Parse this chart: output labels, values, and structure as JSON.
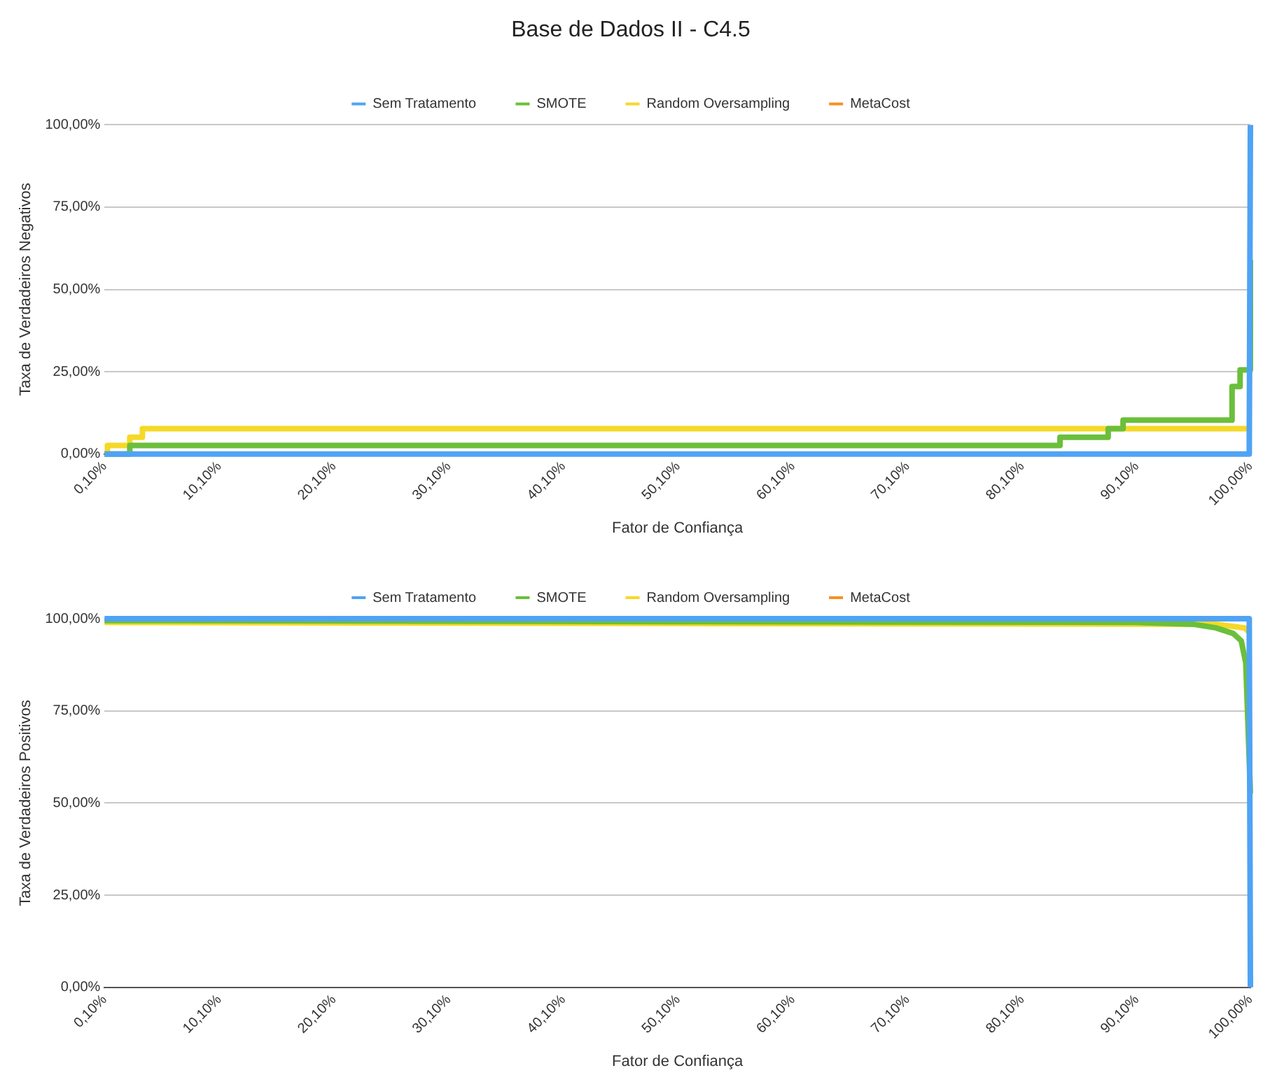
{
  "chart_data": [
    {
      "type": "step",
      "title": "Base de Dados II - C4.5",
      "xlabel": "Fator de Confiança",
      "ylabel": "Taxa de Verdadeiros Negativos",
      "legend": "top",
      "grid": "y",
      "xlim": [
        0.1,
        100
      ],
      "xticks": [
        {
          "value": 0.1,
          "label": "0,10%"
        },
        {
          "value": 10.1,
          "label": "10,10%"
        },
        {
          "value": 20.1,
          "label": "20,10%"
        },
        {
          "value": 30.1,
          "label": "30,10%"
        },
        {
          "value": 40.1,
          "label": "40,10%"
        },
        {
          "value": 50.1,
          "label": "50,10%"
        },
        {
          "value": 60.1,
          "label": "60,10%"
        },
        {
          "value": 70.1,
          "label": "70,10%"
        },
        {
          "value": 80.1,
          "label": "80,10%"
        },
        {
          "value": 90.1,
          "label": "90,10%"
        },
        {
          "value": 100,
          "label": "100,00%"
        }
      ],
      "ylim": [
        0,
        100
      ],
      "yticks": [
        {
          "value": 0,
          "label": "0,00%"
        },
        {
          "value": 25,
          "label": "25,00%"
        },
        {
          "value": 50,
          "label": "50,00%"
        },
        {
          "value": 75,
          "label": "75,00%"
        },
        {
          "value": 100,
          "label": "100,00%"
        }
      ],
      "series": [
        {
          "name": "Sem Tratamento",
          "type": "line",
          "color": "#4fa3f5",
          "x": [
            0.1,
            99.9,
            100
          ],
          "values": [
            0,
            0,
            100
          ]
        },
        {
          "name": "SMOTE",
          "color": "#6bbf3b",
          "x": [
            0.1,
            2.3,
            83.4,
            87.6,
            88.9,
            98.4,
            99.1,
            100
          ],
          "values": [
            0,
            2.6,
            5.1,
            7.7,
            10.3,
            20.5,
            25.6,
            59
          ]
        },
        {
          "name": "Random Oversampling",
          "color": "#f5d928",
          "x": [
            0.1,
            0.35,
            2.3,
            3.4,
            99.7
          ],
          "values": [
            0,
            2.6,
            5.1,
            7.7,
            7.7
          ]
        },
        {
          "name": "MetaCost",
          "color": "#f5921e"
        }
      ]
    },
    {
      "type": "line",
      "xlabel": "Fator de Confiança",
      "ylabel": "Taxa de Verdadeiros Positivos",
      "legend": "top",
      "grid": "y",
      "xlim": [
        0.1,
        100
      ],
      "xticks": [
        {
          "value": 0.1,
          "label": "0,10%"
        },
        {
          "value": 10.1,
          "label": "10,10%"
        },
        {
          "value": 20.1,
          "label": "20,10%"
        },
        {
          "value": 30.1,
          "label": "30,10%"
        },
        {
          "value": 40.1,
          "label": "40,10%"
        },
        {
          "value": 50.1,
          "label": "50,10%"
        },
        {
          "value": 60.1,
          "label": "60,10%"
        },
        {
          "value": 70.1,
          "label": "70,10%"
        },
        {
          "value": 80.1,
          "label": "80,10%"
        },
        {
          "value": 90.1,
          "label": "90,10%"
        },
        {
          "value": 100,
          "label": "100,00%"
        }
      ],
      "ylim": [
        0,
        100
      ],
      "yticks": [
        {
          "value": 0,
          "label": "0,00%"
        },
        {
          "value": 25,
          "label": "25,00%"
        },
        {
          "value": 50,
          "label": "50,00%"
        },
        {
          "value": 75,
          "label": "75,00%"
        },
        {
          "value": 100,
          "label": "100,00%"
        }
      ],
      "series": [
        {
          "name": "Sem Tratamento",
          "color": "#4fa3f5",
          "x": [
            0.1,
            99.9,
            100
          ],
          "values": [
            100,
            100,
            0
          ]
        },
        {
          "name": "SMOTE",
          "color": "#6bbf3b",
          "x": [
            0.1,
            50,
            90,
            95,
            97,
            98.5,
            99.2,
            99.6,
            100
          ],
          "values": [
            99.5,
            99.2,
            99,
            98.5,
            97.5,
            96,
            94,
            88,
            52.6
          ]
        },
        {
          "name": "Random Oversampling",
          "color": "#f5d928",
          "x": [
            0.1,
            50,
            97,
            99.5,
            100
          ],
          "values": [
            99,
            98.7,
            98.5,
            97.5,
            96
          ]
        },
        {
          "name": "MetaCost",
          "color": "#f5921e"
        }
      ]
    }
  ]
}
